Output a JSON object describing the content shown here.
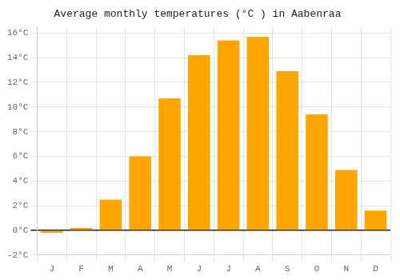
{
  "chart_data": {
    "type": "bar",
    "title": "Average monthly temperatures (°C ) in Aabenraa",
    "categories": [
      "J",
      "F",
      "M",
      "A",
      "M",
      "J",
      "J",
      "A",
      "S",
      "O",
      "N",
      "D"
    ],
    "values": [
      -0.2,
      0.2,
      2.5,
      6.0,
      10.7,
      14.2,
      15.4,
      15.7,
      12.9,
      9.4,
      4.9,
      1.6
    ],
    "color": "#FFA500",
    "ylim": [
      -2,
      16.5
    ],
    "yticks": [
      {
        "value": -2,
        "label": "-2°C"
      },
      {
        "value": 0,
        "label": "0°C"
      },
      {
        "value": 2,
        "label": "2°C"
      },
      {
        "value": 4,
        "label": "4°C"
      },
      {
        "value": 6,
        "label": "6°C"
      },
      {
        "value": 8,
        "label": "8°C"
      },
      {
        "value": 10,
        "label": "10°C"
      },
      {
        "value": 12,
        "label": "12°C"
      },
      {
        "value": 14,
        "label": "14°C"
      },
      {
        "value": 16,
        "label": "16°C"
      }
    ],
    "grid": true
  }
}
